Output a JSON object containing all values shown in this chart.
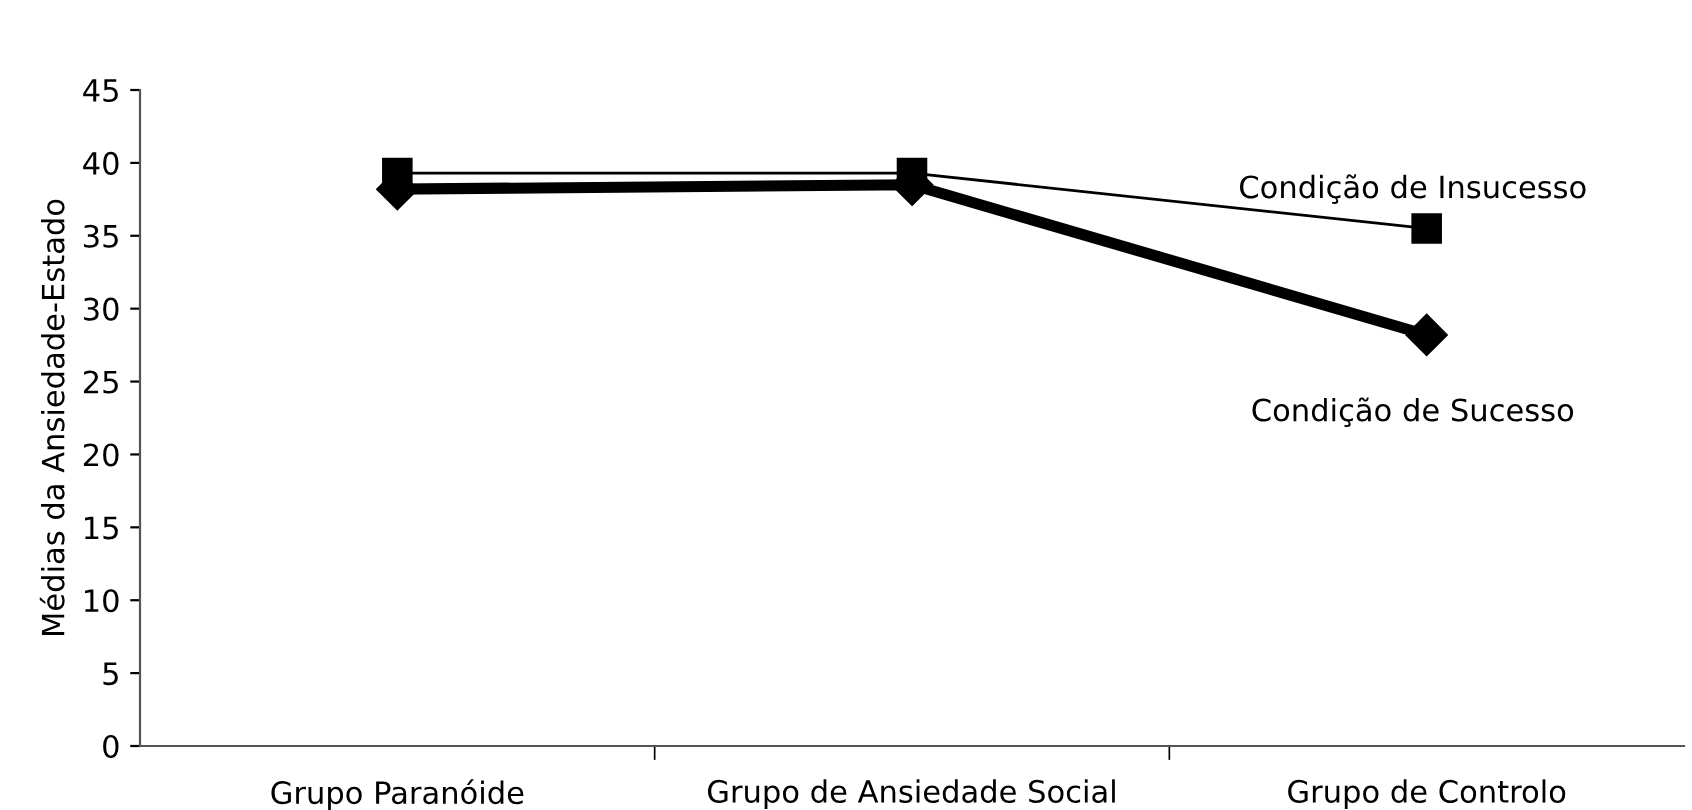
{
  "chart_data": {
    "type": "line",
    "ylabel": "Médias da Ansiedade-Estado",
    "categories": [
      "Grupo Paranóide",
      "Grupo de Ansiedade Social",
      "Grupo de Controlo"
    ],
    "series": [
      {
        "name": "Condição de Insucesso",
        "color": "#000000",
        "marker": "square",
        "values": [
          39.3,
          39.3,
          35.5
        ]
      },
      {
        "name": "Condição de Sucesso",
        "color": "#000000",
        "marker": "diamond",
        "values": [
          38.2,
          38.5,
          28.2
        ]
      }
    ],
    "ylim": [
      0,
      45
    ],
    "yticks": [
      0,
      5,
      10,
      15,
      20,
      25,
      30,
      35,
      40,
      45
    ],
    "grid": false,
    "legend": false,
    "line_style": "solid"
  }
}
